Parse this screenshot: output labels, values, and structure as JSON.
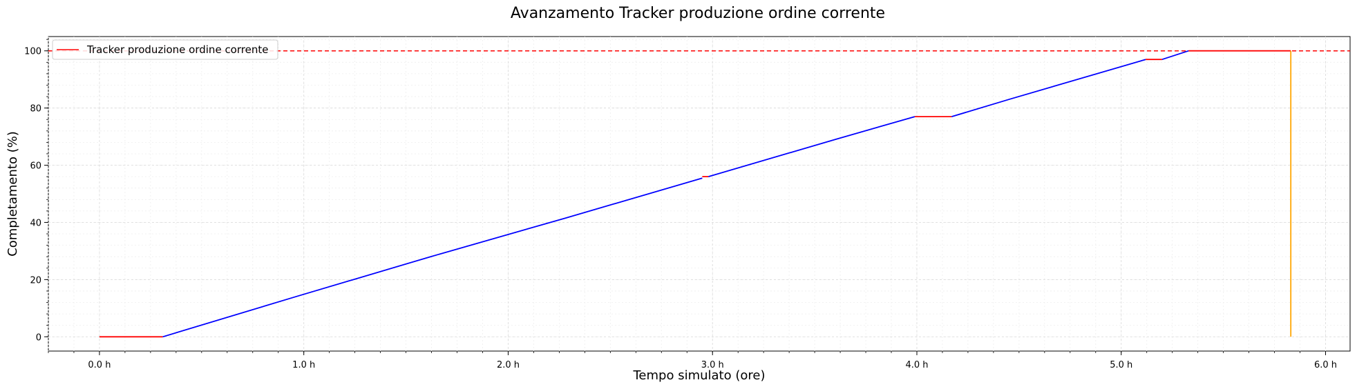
{
  "chart_data": {
    "type": "line",
    "title": "Avanzamento Tracker produzione ordine corrente",
    "xlabel": "Tempo simulato (ore)",
    "ylabel": "Completamento (%)",
    "xlim": [
      -0.25,
      6.12
    ],
    "ylim": [
      -5,
      105
    ],
    "xticks": [
      0,
      1,
      2,
      3,
      4,
      5,
      6
    ],
    "xtick_labels": [
      "0.0 h",
      "1.0 h",
      "2.0 h",
      "3.0 h",
      "4.0 h",
      "5.0 h",
      "6.0 h"
    ],
    "yticks": [
      0,
      20,
      40,
      60,
      80,
      100
    ],
    "ytick_labels": [
      "0",
      "20",
      "40",
      "60",
      "80",
      "100"
    ],
    "grid": true,
    "legend": {
      "position": "top-left",
      "entries": [
        "Tracker produzione ordine corrente"
      ]
    },
    "reference_line": {
      "y": 100,
      "style": "dashed",
      "color": "#ff0000"
    },
    "colors": {
      "idle": "#ff0000",
      "producing": "#0000ff",
      "reset": "#ffa500"
    },
    "segments": [
      {
        "state": "idle",
        "x": [
          0.0,
          0.31
        ],
        "y": [
          0,
          0
        ]
      },
      {
        "state": "producing",
        "x": [
          0.31,
          0.96,
          1.62,
          2.28,
          2.95
        ],
        "y": [
          0,
          14,
          28,
          41.5,
          55.5
        ]
      },
      {
        "state": "idle",
        "x": [
          2.95,
          2.98
        ],
        "y": [
          56,
          56
        ]
      },
      {
        "state": "producing",
        "x": [
          2.98,
          3.6,
          3.99
        ],
        "y": [
          56,
          69,
          77
        ]
      },
      {
        "state": "idle",
        "x": [
          3.99,
          4.17
        ],
        "y": [
          77,
          77
        ]
      },
      {
        "state": "producing",
        "x": [
          4.17,
          4.45,
          5.12
        ],
        "y": [
          77,
          83,
          97
        ]
      },
      {
        "state": "idle",
        "x": [
          5.12,
          5.2
        ],
        "y": [
          97,
          97
        ]
      },
      {
        "state": "producing",
        "x": [
          5.2,
          5.33
        ],
        "y": [
          97,
          100
        ]
      },
      {
        "state": "idle",
        "x": [
          5.33,
          5.83
        ],
        "y": [
          100,
          100
        ]
      },
      {
        "state": "reset",
        "x": [
          5.83,
          5.83
        ],
        "y": [
          100,
          0
        ]
      }
    ]
  }
}
